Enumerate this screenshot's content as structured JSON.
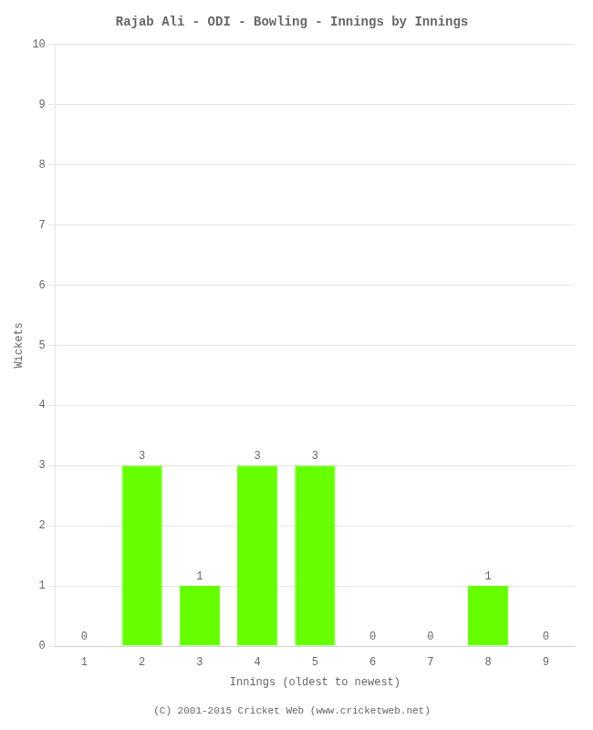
{
  "chart_data": {
    "type": "bar",
    "title": "Rajab Ali - ODI - Bowling - Innings by Innings",
    "xlabel": "Innings (oldest to newest)",
    "ylabel": "Wickets",
    "categories": [
      1,
      2,
      3,
      4,
      5,
      6,
      7,
      8,
      9
    ],
    "values": [
      0,
      3,
      1,
      3,
      3,
      0,
      0,
      1,
      0
    ],
    "color": "#66ff00",
    "ylim": [
      0,
      10
    ],
    "yticks": [
      0,
      1,
      2,
      3,
      4,
      5,
      6,
      7,
      8,
      9,
      10
    ],
    "grid": true,
    "data_labels": true,
    "annotations": [
      "(C) 2001-2015 Cricket Web (www.cricketweb.net)"
    ]
  }
}
